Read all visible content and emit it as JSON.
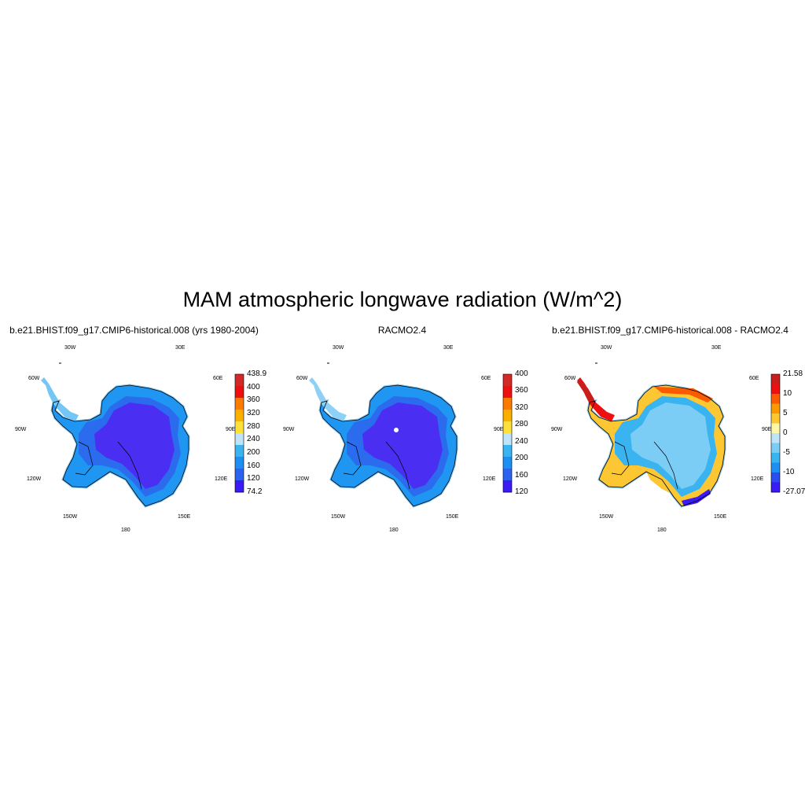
{
  "title": "MAM atmospheric longwave radiation (W/m^2)",
  "lon_labels": [
    "30W",
    "30E",
    "60W",
    "60E",
    "90W",
    "90E",
    "120W",
    "120E",
    "150W",
    "150E",
    "180"
  ],
  "panels": [
    {
      "title": "b.e21.BHIST.f09_g17.CMIP6-historical.008 (yrs 1980-2004)",
      "colorbar": {
        "labels": [
          "438.9",
          "400",
          "360",
          "320",
          "280",
          "240",
          "200",
          "160",
          "120",
          "74.2"
        ],
        "colors": [
          "#d42a27",
          "#ee1010",
          "#fb7a00",
          "#fbb000",
          "#fde13a",
          "#bfe3f8",
          "#3ab4f0",
          "#1e8ff2",
          "#2b62ee",
          "#3a1af5"
        ]
      },
      "fields": {
        "ice": "#4a2ff3",
        "inland": "#2b6bee",
        "coast": "#1e96f2",
        "edge": "#41b4f4",
        "peninsula": "#73c6f5"
      }
    },
    {
      "title": "RACMO2.4",
      "colorbar": {
        "labels": [
          "400",
          "360",
          "320",
          "280",
          "240",
          "200",
          "160",
          "120"
        ],
        "colors": [
          "#d42a27",
          "#ee1010",
          "#fb7a00",
          "#fbb000",
          "#fde13a",
          "#bfe3f8",
          "#3ab4f0",
          "#1e8ff2",
          "#2b62ee",
          "#3a1af5"
        ]
      },
      "fields": {
        "ice": "#4a2ff3",
        "inland": "#2b6bee",
        "coast": "#1e96f2",
        "edge": "#41b4f4",
        "peninsula": "#8fd1f6"
      }
    },
    {
      "title": "b.e21.BHIST.f09_g17.CMIP6-historical.008 - RACMO2.4",
      "colorbar": {
        "labels": [
          "21.58",
          "10",
          "5",
          "0",
          "-5",
          "-10",
          "-27.07"
        ],
        "colors": [
          "#c81e1e",
          "#ee1010",
          "#fb5a00",
          "#fb9a00",
          "#fdc633",
          "#fff7a8",
          "#bfe3f8",
          "#7ccdf5",
          "#3ab4f0",
          "#1e8ff2",
          "#2b4cee",
          "#3a1af5"
        ]
      },
      "fields": {
        "ice": "#7ccdf5",
        "inland": "#3ab4f0",
        "coast": "#fdc633",
        "edge": "#2b4cee",
        "peninsula": "#ee1010"
      }
    }
  ]
}
